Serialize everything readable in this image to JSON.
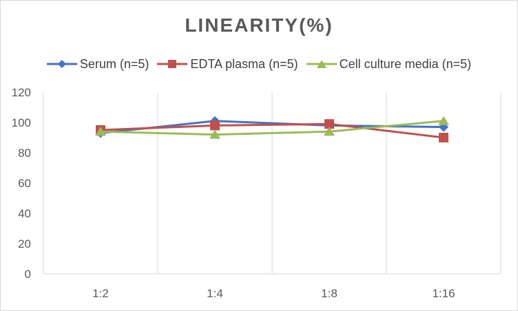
{
  "chart_data": {
    "type": "line",
    "title": "LINEARITY(%)",
    "xlabel": "",
    "ylabel": "",
    "categories": [
      "1:2",
      "1:4",
      "1:8",
      "1:16"
    ],
    "ylim": [
      0,
      120
    ],
    "yticks": [
      0,
      20,
      40,
      60,
      80,
      100,
      120
    ],
    "grid": "vertical",
    "legend_position": "top",
    "series": [
      {
        "name": "Serum (n=5)",
        "color": "#4472c4",
        "marker": "diamond",
        "values": [
          93,
          101,
          98,
          97
        ]
      },
      {
        "name": "EDTA plasma (n=5)",
        "color": "#c0504d",
        "marker": "square",
        "values": [
          95,
          98,
          99,
          90
        ]
      },
      {
        "name": "Cell culture media (n=5)",
        "color": "#9bbb59",
        "marker": "triangle",
        "values": [
          94,
          92,
          94,
          101
        ]
      }
    ]
  }
}
